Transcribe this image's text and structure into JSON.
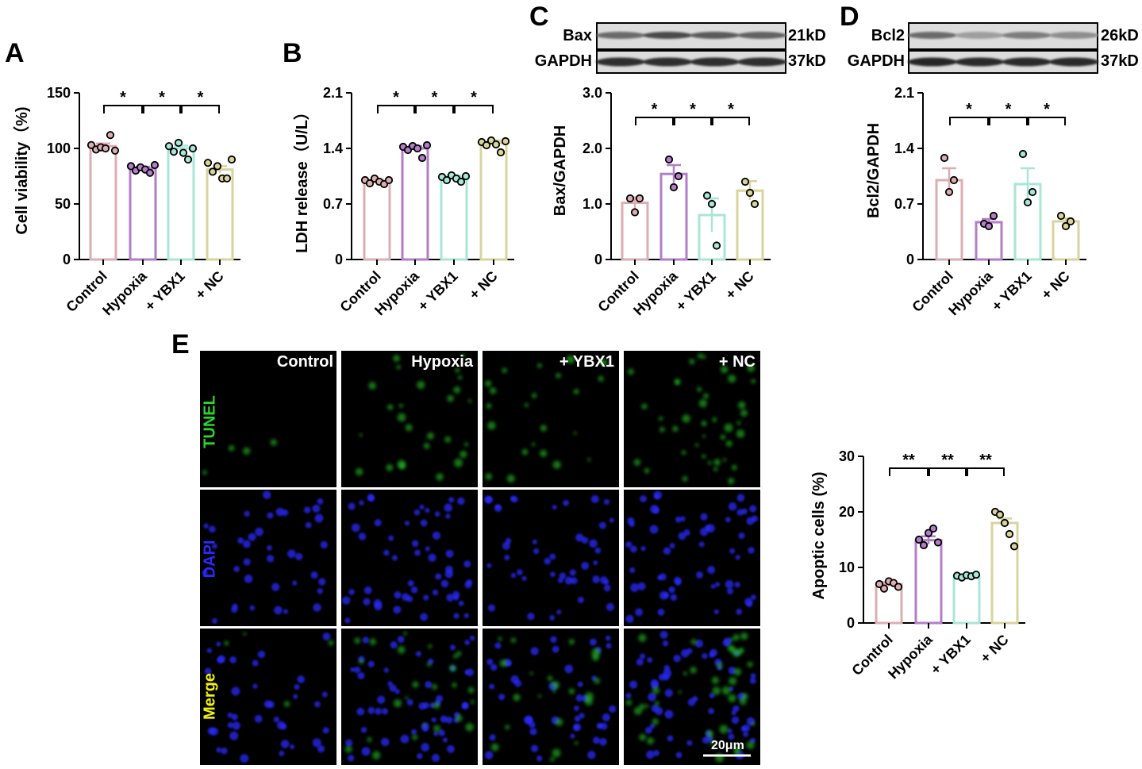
{
  "panels": {
    "A": "A",
    "B": "B",
    "C": "C",
    "D": "D",
    "E": "E"
  },
  "groups": [
    "Control",
    "Hypoxia",
    "+ YBX1",
    "+ NC"
  ],
  "colors": {
    "control": "#dbaeb1",
    "hypoxia": "#b17ec7",
    "ybx1": "#a8e6d6",
    "nc": "#d9d39c",
    "tunel": "#2bd62b",
    "dapi": "#2a2aff",
    "merge": "#f2f20a"
  },
  "blots": {
    "C": {
      "rows": [
        {
          "protein": "Bax",
          "size": "21kD"
        },
        {
          "protein": "GAPDH",
          "size": "37kD"
        }
      ]
    },
    "D": {
      "rows": [
        {
          "protein": "Bcl2",
          "size": "26kD"
        },
        {
          "protein": "GAPDH",
          "size": "37kD"
        }
      ]
    }
  },
  "microscopy": {
    "columns": [
      "Control",
      "Hypoxia",
      "+ YBX1",
      "+ NC"
    ],
    "rows": [
      "TUNEL",
      "DAPI",
      "Merge"
    ],
    "scale_bar": "20μm"
  },
  "chart_data": [
    {
      "panel": "A",
      "type": "bar",
      "ylabel": "Cell viability（%)",
      "ylim": [
        0,
        150
      ],
      "yticks": [
        "0",
        "50",
        "100",
        "150"
      ],
      "categories": [
        "Control",
        "Hypoxia",
        "+ YBX1",
        "+ NC"
      ],
      "values": [
        102,
        82,
        100,
        81
      ],
      "errors": [
        2.5,
        1.5,
        2.5,
        3
      ],
      "points": [
        [
          103,
          99,
          101,
          100,
          112,
          98
        ],
        [
          84,
          80,
          83,
          81,
          78,
          85
        ],
        [
          102,
          97,
          105,
          96,
          90,
          100
        ],
        [
          87,
          79,
          84,
          73,
          73,
          90
        ]
      ],
      "significance": [
        "*",
        "*",
        "*"
      ]
    },
    {
      "panel": "B",
      "type": "bar",
      "ylabel": "LDH  release（U/L）",
      "ylim": [
        0,
        2.1
      ],
      "yticks": [
        "0",
        "0.7",
        "1.4",
        "2.1"
      ],
      "categories": [
        "Control",
        "Hypoxia",
        "+ YBX1",
        "+ NC"
      ],
      "values": [
        0.99,
        1.4,
        1.04,
        1.47
      ],
      "errors": [
        0.015,
        0.03,
        0.02,
        0.03
      ],
      "points": [
        [
          1.0,
          0.96,
          1.02,
          0.98,
          0.95,
          1.0
        ],
        [
          1.42,
          1.38,
          1.43,
          1.4,
          1.28,
          1.44
        ],
        [
          1.04,
          1.0,
          1.06,
          1.02,
          0.98,
          1.05
        ],
        [
          1.48,
          1.44,
          1.5,
          1.45,
          1.35,
          1.49
        ]
      ],
      "significance": [
        "*",
        "*",
        "*"
      ]
    },
    {
      "panel": "C",
      "type": "bar",
      "ylabel": "Bax/GAPDH",
      "ylim": [
        0,
        3.0
      ],
      "yticks": [
        "0",
        "1.0",
        "2.0",
        "3.0"
      ],
      "categories": [
        "Control",
        "Hypoxia",
        "+ YBX1",
        "+ NC"
      ],
      "values": [
        1.02,
        1.54,
        0.8,
        1.24
      ],
      "errors": [
        0.1,
        0.16,
        0.3,
        0.17
      ],
      "points": [
        [
          1.1,
          0.85,
          1.1
        ],
        [
          1.8,
          1.3,
          1.5
        ],
        [
          1.15,
          1.0,
          0.25
        ],
        [
          1.4,
          1.2,
          1.0
        ]
      ],
      "significance": [
        "*",
        "*",
        "*"
      ]
    },
    {
      "panel": "D",
      "type": "bar",
      "ylabel": "Bcl2/GAPDH",
      "ylim": [
        0,
        2.1
      ],
      "yticks": [
        "0",
        "0.7",
        "1.4",
        "2.1"
      ],
      "categories": [
        "Control",
        "Hypoxia",
        "+ YBX1",
        "+ NC"
      ],
      "values": [
        1.0,
        0.47,
        0.95,
        0.48
      ],
      "errors": [
        0.15,
        0.04,
        0.2,
        0.04
      ],
      "points": [
        [
          1.28,
          0.85,
          1.0
        ],
        [
          0.45,
          0.42,
          0.55
        ],
        [
          1.33,
          0.72,
          0.85
        ],
        [
          0.55,
          0.42,
          0.48
        ]
      ],
      "significance": [
        "*",
        "*",
        "*"
      ]
    },
    {
      "panel": "E",
      "type": "bar",
      "ylabel": "Apoptic cells (%)",
      "ylim": [
        0,
        30
      ],
      "yticks": [
        "0",
        "10",
        "20",
        "30"
      ],
      "categories": [
        "Control",
        "Hypoxia",
        "+ YBX1",
        "+ NC"
      ],
      "values": [
        7.0,
        14.9,
        8.4,
        18.0
      ],
      "errors": [
        0.4,
        0.7,
        0.2,
        0.8
      ],
      "points": [
        [
          7.0,
          6.2,
          7.5,
          7.2,
          6.5
        ],
        [
          15.0,
          14.0,
          16.2,
          17.0,
          14.5
        ],
        [
          8.5,
          8.2,
          8.6,
          8.4,
          8.7
        ],
        [
          20.0,
          19.5,
          18.0,
          16.0,
          13.8
        ]
      ],
      "significance": [
        "**",
        "**",
        "**"
      ]
    }
  ]
}
